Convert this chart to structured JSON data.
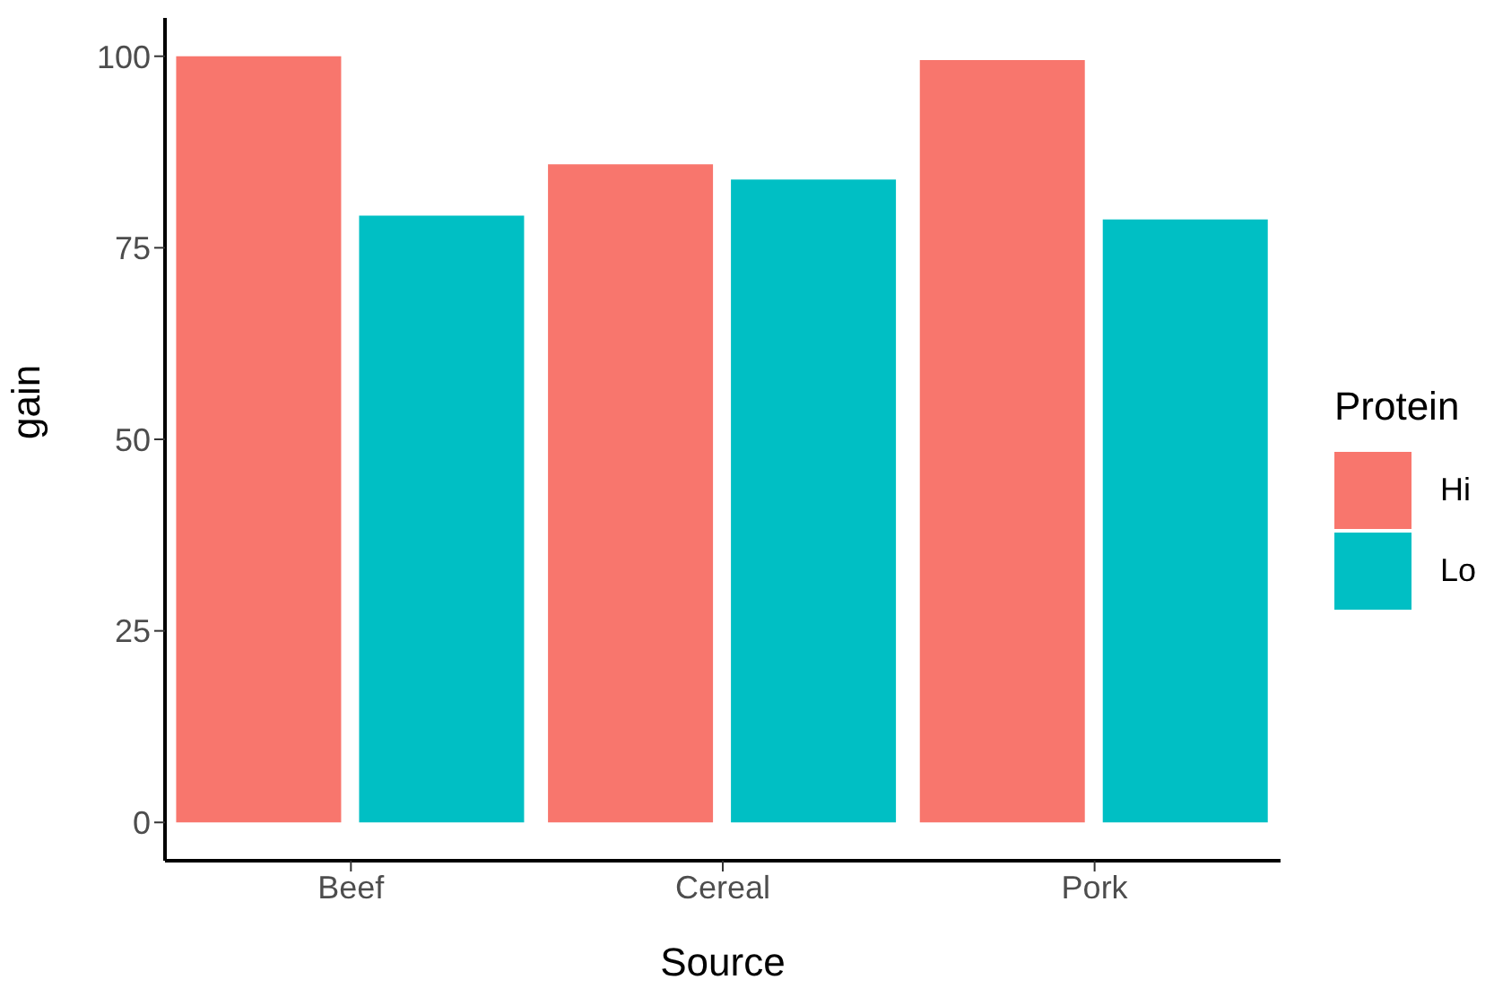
{
  "chart_data": {
    "type": "bar",
    "xlabel": "Source",
    "ylabel": "gain",
    "legend_title": "Protein",
    "categories": [
      "Beef",
      "Cereal",
      "Pork"
    ],
    "series": [
      {
        "name": "Hi",
        "color": "#f8766d",
        "values": [
          100,
          85.9,
          99.5
        ]
      },
      {
        "name": "Lo",
        "color": "#00bfc4",
        "values": [
          79.2,
          83.9,
          78.7
        ]
      }
    ],
    "ylim": [
      -5,
      105
    ],
    "yticks": [
      0,
      25,
      50,
      75,
      100
    ],
    "grid": false,
    "legend": "right"
  }
}
